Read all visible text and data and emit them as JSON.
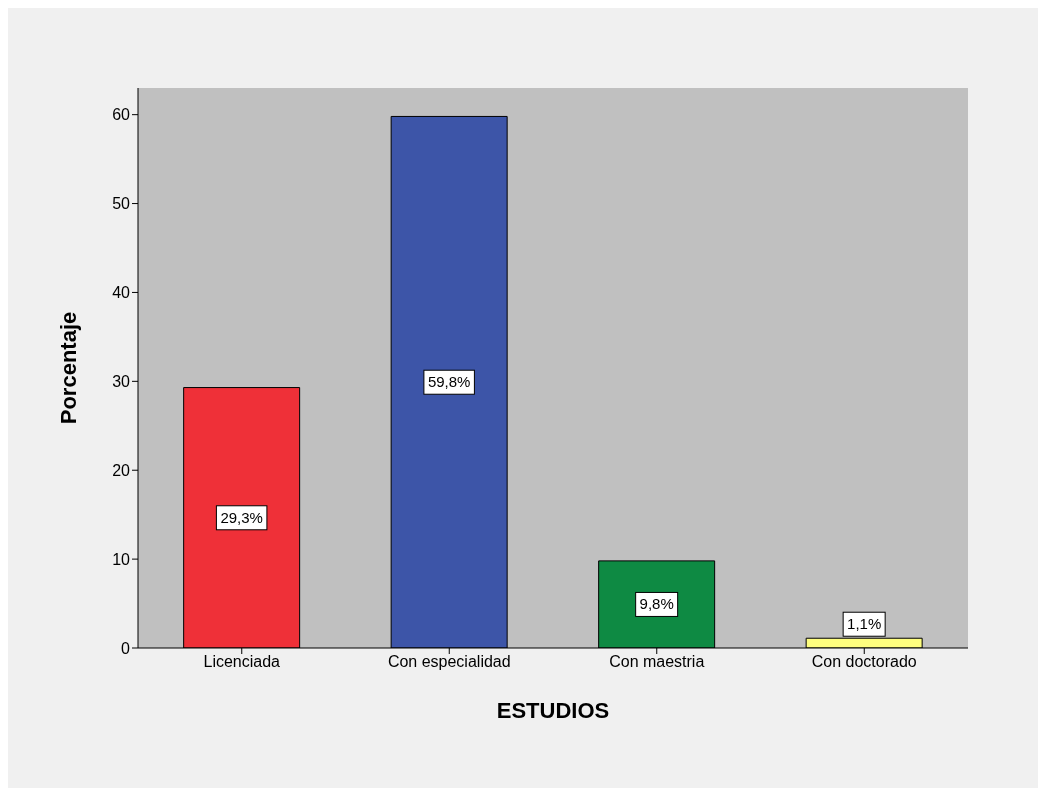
{
  "chart_data": {
    "type": "bar",
    "xlabel": "ESTUDIOS",
    "ylabel": "Porcentaje",
    "categories": [
      "Licenciada",
      "Con especialidad",
      "Con maestria",
      "Con doctorado"
    ],
    "values": [
      29.3,
      59.8,
      9.8,
      1.1
    ],
    "value_labels": [
      "29,3%",
      "59,8%",
      "9,8%",
      "1,1%"
    ],
    "colors": [
      "#ef3038",
      "#3d55a8",
      "#0e8a43",
      "#fefe7f"
    ],
    "ylim": [
      0,
      63
    ],
    "yticks": [
      0,
      10,
      20,
      30,
      40,
      50,
      60
    ],
    "grid": false
  }
}
